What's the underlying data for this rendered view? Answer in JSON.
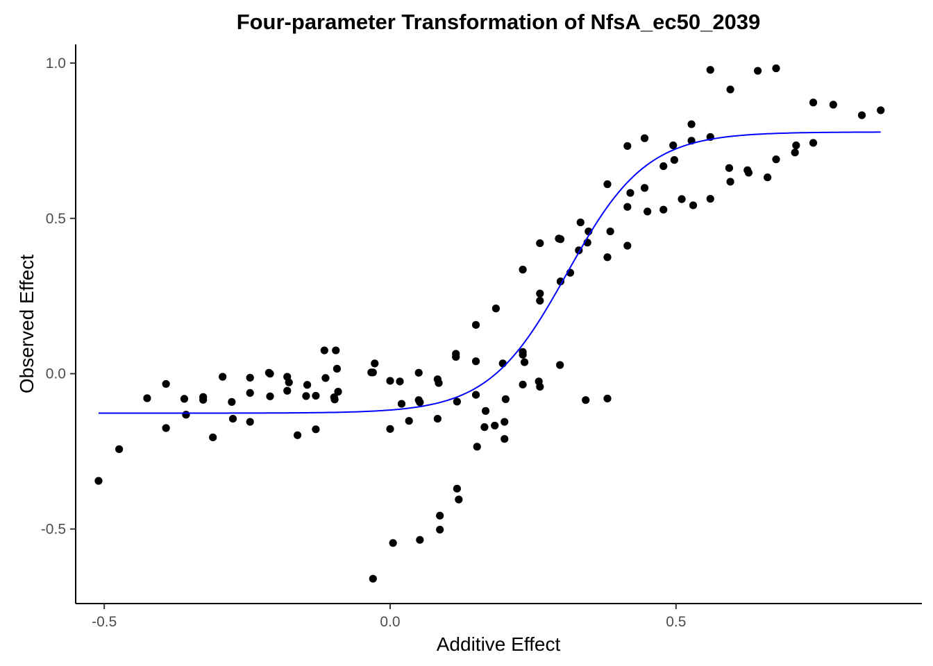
{
  "chart_data": {
    "type": "scatter",
    "title": "Four-parameter Transformation of NfsA_ec50_2039",
    "xlabel": "Additive Effect",
    "ylabel": "Observed Effect",
    "xlim": [
      -0.55,
      0.93
    ],
    "ylim": [
      -0.74,
      1.06
    ],
    "xticks": [
      -0.5,
      0.0,
      0.5
    ],
    "xtick_labels": [
      "-0.5",
      "0.0",
      "0.5"
    ],
    "yticks": [
      -0.5,
      0.0,
      0.5,
      1.0
    ],
    "ytick_labels": [
      "-0.5",
      "0.0",
      "0.5",
      "1.0"
    ],
    "grid": false,
    "point_color": "#000000",
    "curve_color": "#0000ff",
    "points": [
      {
        "x": -0.51,
        "y": -0.345
      },
      {
        "x": -0.474,
        "y": -0.243
      },
      {
        "x": -0.425,
        "y": -0.079
      },
      {
        "x": -0.392,
        "y": -0.033
      },
      {
        "x": -0.392,
        "y": -0.175
      },
      {
        "x": -0.36,
        "y": -0.081
      },
      {
        "x": -0.357,
        "y": -0.132
      },
      {
        "x": -0.327,
        "y": -0.075
      },
      {
        "x": -0.327,
        "y": -0.084
      },
      {
        "x": -0.31,
        "y": -0.205
      },
      {
        "x": -0.293,
        "y": -0.01
      },
      {
        "x": -0.277,
        "y": -0.091
      },
      {
        "x": -0.275,
        "y": -0.145
      },
      {
        "x": -0.245,
        "y": -0.013
      },
      {
        "x": -0.245,
        "y": -0.062
      },
      {
        "x": -0.245,
        "y": -0.155
      },
      {
        "x": -0.212,
        "y": 0.003
      },
      {
        "x": -0.21,
        "y": 0.0
      },
      {
        "x": -0.21,
        "y": -0.073
      },
      {
        "x": -0.18,
        "y": -0.055
      },
      {
        "x": -0.18,
        "y": -0.01
      },
      {
        "x": -0.177,
        "y": -0.028
      },
      {
        "x": -0.162,
        "y": -0.198
      },
      {
        "x": -0.147,
        "y": -0.072
      },
      {
        "x": -0.145,
        "y": -0.036
      },
      {
        "x": -0.13,
        "y": -0.179
      },
      {
        "x": -0.115,
        "y": 0.075
      },
      {
        "x": -0.13,
        "y": -0.071
      },
      {
        "x": -0.113,
        "y": -0.014
      },
      {
        "x": -0.098,
        "y": -0.076
      },
      {
        "x": -0.097,
        "y": -0.083
      },
      {
        "x": -0.095,
        "y": 0.075
      },
      {
        "x": -0.093,
        "y": 0.016
      },
      {
        "x": -0.091,
        "y": -0.058
      },
      {
        "x": -0.033,
        "y": 0.004
      },
      {
        "x": -0.03,
        "y": 0.004
      },
      {
        "x": -0.03,
        "y": -0.66
      },
      {
        "x": -0.027,
        "y": 0.033
      },
      {
        "x": 0.0,
        "y": -0.178
      },
      {
        "x": 0.0,
        "y": -0.023
      },
      {
        "x": 0.005,
        "y": -0.545
      },
      {
        "x": 0.017,
        "y": -0.025
      },
      {
        "x": 0.02,
        "y": -0.097
      },
      {
        "x": 0.033,
        "y": -0.152
      },
      {
        "x": 0.05,
        "y": 0.003
      },
      {
        "x": 0.05,
        "y": -0.085
      },
      {
        "x": 0.052,
        "y": -0.092
      },
      {
        "x": 0.052,
        "y": -0.535
      },
      {
        "x": 0.083,
        "y": -0.018
      },
      {
        "x": 0.083,
        "y": -0.145
      },
      {
        "x": 0.085,
        "y": -0.03
      },
      {
        "x": 0.087,
        "y": -0.457
      },
      {
        "x": 0.087,
        "y": -0.502
      },
      {
        "x": 0.115,
        "y": 0.064
      },
      {
        "x": 0.115,
        "y": 0.054
      },
      {
        "x": 0.117,
        "y": -0.09
      },
      {
        "x": 0.117,
        "y": -0.37
      },
      {
        "x": 0.12,
        "y": -0.405
      },
      {
        "x": 0.15,
        "y": 0.157
      },
      {
        "x": 0.15,
        "y": 0.04
      },
      {
        "x": 0.15,
        "y": -0.068
      },
      {
        "x": 0.152,
        "y": -0.235
      },
      {
        "x": 0.165,
        "y": -0.172
      },
      {
        "x": 0.167,
        "y": -0.12
      },
      {
        "x": 0.183,
        "y": -0.167
      },
      {
        "x": 0.185,
        "y": 0.21
      },
      {
        "x": 0.197,
        "y": 0.033
      },
      {
        "x": 0.2,
        "y": -0.155
      },
      {
        "x": 0.2,
        "y": -0.21
      },
      {
        "x": 0.202,
        "y": -0.082
      },
      {
        "x": 0.232,
        "y": 0.335
      },
      {
        "x": 0.232,
        "y": 0.07
      },
      {
        "x": 0.232,
        "y": 0.061
      },
      {
        "x": 0.235,
        "y": 0.037
      },
      {
        "x": 0.232,
        "y": -0.035
      },
      {
        "x": 0.262,
        "y": 0.42
      },
      {
        "x": 0.262,
        "y": 0.258
      },
      {
        "x": 0.262,
        "y": 0.235
      },
      {
        "x": 0.26,
        "y": -0.025
      },
      {
        "x": 0.262,
        "y": -0.042
      },
      {
        "x": 0.295,
        "y": 0.435
      },
      {
        "x": 0.298,
        "y": 0.433
      },
      {
        "x": 0.298,
        "y": 0.297
      },
      {
        "x": 0.297,
        "y": 0.028
      },
      {
        "x": 0.315,
        "y": 0.325
      },
      {
        "x": 0.33,
        "y": 0.397
      },
      {
        "x": 0.333,
        "y": 0.487
      },
      {
        "x": 0.345,
        "y": 0.422
      },
      {
        "x": 0.347,
        "y": 0.458
      },
      {
        "x": 0.342,
        "y": -0.085
      },
      {
        "x": 0.38,
        "y": 0.61
      },
      {
        "x": 0.38,
        "y": 0.375
      },
      {
        "x": 0.385,
        "y": 0.458
      },
      {
        "x": 0.38,
        "y": -0.08
      },
      {
        "x": 0.415,
        "y": 0.733
      },
      {
        "x": 0.415,
        "y": 0.537
      },
      {
        "x": 0.42,
        "y": 0.582
      },
      {
        "x": 0.415,
        "y": 0.412
      },
      {
        "x": 0.445,
        "y": 0.758
      },
      {
        "x": 0.445,
        "y": 0.598
      },
      {
        "x": 0.45,
        "y": 0.522
      },
      {
        "x": 0.478,
        "y": 0.528
      },
      {
        "x": 0.478,
        "y": 0.668
      },
      {
        "x": 0.495,
        "y": 0.735
      },
      {
        "x": 0.497,
        "y": 0.688
      },
      {
        "x": 0.51,
        "y": 0.562
      },
      {
        "x": 0.527,
        "y": 0.803
      },
      {
        "x": 0.527,
        "y": 0.75
      },
      {
        "x": 0.53,
        "y": 0.542
      },
      {
        "x": 0.56,
        "y": 0.978
      },
      {
        "x": 0.56,
        "y": 0.762
      },
      {
        "x": 0.56,
        "y": 0.563
      },
      {
        "x": 0.595,
        "y": 0.915
      },
      {
        "x": 0.593,
        "y": 0.662
      },
      {
        "x": 0.595,
        "y": 0.618
      },
      {
        "x": 0.625,
        "y": 0.655
      },
      {
        "x": 0.627,
        "y": 0.647
      },
      {
        "x": 0.643,
        "y": 0.975
      },
      {
        "x": 0.66,
        "y": 0.632
      },
      {
        "x": 0.675,
        "y": 0.983
      },
      {
        "x": 0.675,
        "y": 0.69
      },
      {
        "x": 0.71,
        "y": 0.735
      },
      {
        "x": 0.708,
        "y": 0.712
      },
      {
        "x": 0.74,
        "y": 0.873
      },
      {
        "x": 0.74,
        "y": 0.743
      },
      {
        "x": 0.775,
        "y": 0.866
      },
      {
        "x": 0.825,
        "y": 0.832
      },
      {
        "x": 0.858,
        "y": 0.848
      }
    ],
    "fit_curve": {
      "type": "four-parameter logistic",
      "lower": -0.127,
      "upper": 0.778,
      "ec50": 0.31,
      "slope": 14.5,
      "x_range": [
        -0.51,
        0.858
      ]
    }
  }
}
